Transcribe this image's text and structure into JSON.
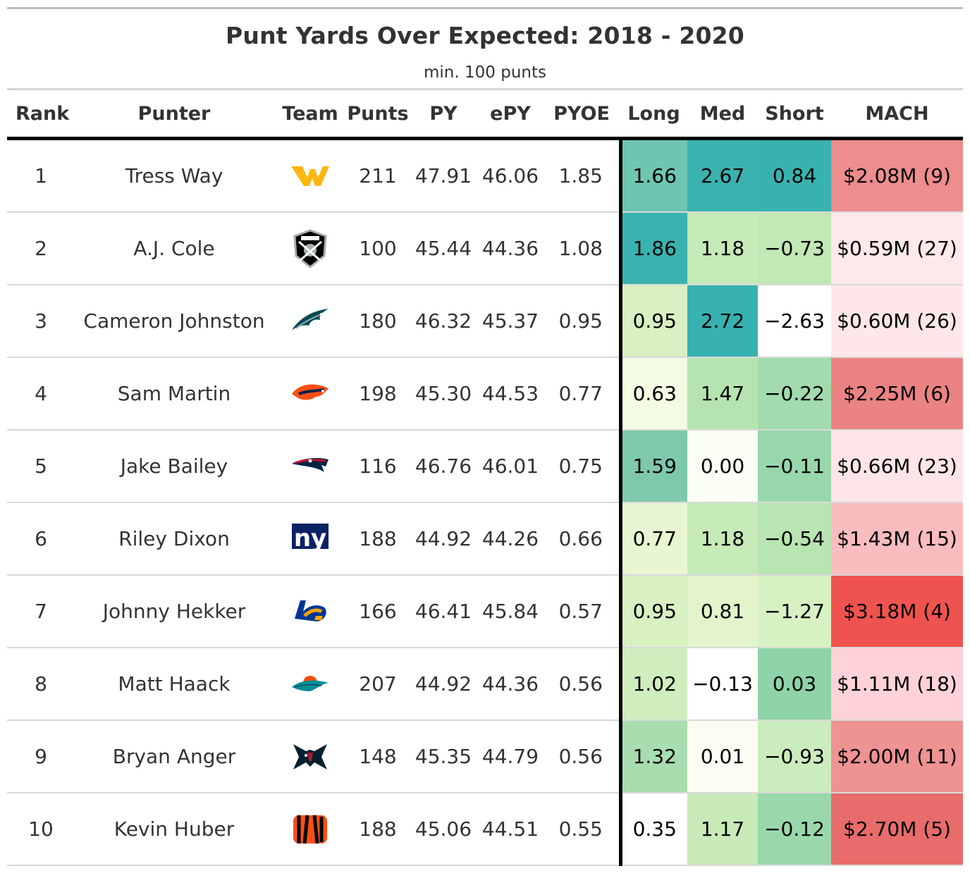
{
  "title": "Punt Yards Over Expected: 2018 - 2020",
  "subtitle": "min. 100 punts",
  "columns": [
    "Rank",
    "Punter",
    "Team",
    "Punts",
    "PY",
    "ePY",
    "PYOE",
    "Long",
    "Med",
    "Short",
    "MACH"
  ],
  "rows": [
    {
      "rank": "1",
      "punter": "Tress Way",
      "team": "washington-logo",
      "punts": "211",
      "py": "47.91",
      "epy": "46.06",
      "pyoe": "1.85",
      "long": "1.66",
      "med": "2.67",
      "short": "0.84",
      "mach": "$2.08M (9)"
    },
    {
      "rank": "2",
      "punter": "A.J. Cole",
      "team": "raiders-logo",
      "punts": "100",
      "py": "45.44",
      "epy": "44.36",
      "pyoe": "1.08",
      "long": "1.86",
      "med": "1.18",
      "short": "−0.73",
      "mach": "$0.59M (27)"
    },
    {
      "rank": "3",
      "punter": "Cameron Johnston",
      "team": "eagles-logo",
      "punts": "180",
      "py": "46.32",
      "epy": "45.37",
      "pyoe": "0.95",
      "long": "0.95",
      "med": "2.72",
      "short": "−2.63",
      "mach": "$0.60M (26)"
    },
    {
      "rank": "4",
      "punter": "Sam Martin",
      "team": "broncos-logo",
      "punts": "198",
      "py": "45.30",
      "epy": "44.53",
      "pyoe": "0.77",
      "long": "0.63",
      "med": "1.47",
      "short": "−0.22",
      "mach": "$2.25M (6)"
    },
    {
      "rank": "5",
      "punter": "Jake Bailey",
      "team": "patriots-logo",
      "punts": "116",
      "py": "46.76",
      "epy": "46.01",
      "pyoe": "0.75",
      "long": "1.59",
      "med": "0.00",
      "short": "−0.11",
      "mach": "$0.66M (23)"
    },
    {
      "rank": "6",
      "punter": "Riley Dixon",
      "team": "giants-logo",
      "punts": "188",
      "py": "44.92",
      "epy": "44.26",
      "pyoe": "0.66",
      "long": "0.77",
      "med": "1.18",
      "short": "−0.54",
      "mach": "$1.43M (15)"
    },
    {
      "rank": "7",
      "punter": "Johnny Hekker",
      "team": "rams-logo",
      "punts": "166",
      "py": "46.41",
      "epy": "45.84",
      "pyoe": "0.57",
      "long": "0.95",
      "med": "0.81",
      "short": "−1.27",
      "mach": "$3.18M (4)"
    },
    {
      "rank": "8",
      "punter": "Matt Haack",
      "team": "dolphins-logo",
      "punts": "207",
      "py": "44.92",
      "epy": "44.36",
      "pyoe": "0.56",
      "long": "1.02",
      "med": "−0.13",
      "short": "0.03",
      "mach": "$1.11M (18)"
    },
    {
      "rank": "9",
      "punter": "Bryan Anger",
      "team": "texans-logo",
      "punts": "148",
      "py": "45.35",
      "epy": "44.79",
      "pyoe": "0.56",
      "long": "1.32",
      "med": "0.01",
      "short": "−0.93",
      "mach": "$2.00M (11)"
    },
    {
      "rank": "10",
      "punter": "Kevin Huber",
      "team": "bengals-logo",
      "punts": "188",
      "py": "45.06",
      "epy": "44.51",
      "pyoe": "0.55",
      "long": "0.35",
      "med": "1.17",
      "short": "−0.12",
      "mach": "$2.70M (5)"
    }
  ],
  "cell_colors": {
    "long": [
      "#6ec5b0",
      "#3ab3b0",
      "#d8f0c2",
      "#f3fbe3",
      "#7ec9ac",
      "#e8f7d2",
      "#d8f0c2",
      "#d0edbe",
      "#a8ddb0",
      "#ffffff"
    ],
    "med": [
      "#3ab3b0",
      "#c6eab8",
      "#37b2b0",
      "#b6e4b0",
      "#fafdf3",
      "#c6eab8",
      "#e2f5ca",
      "#ffffff",
      "#fbfdf3",
      "#c8eab8"
    ],
    "short": [
      "#37b2b0",
      "#c2e8b5",
      "#ffffff",
      "#a2dbad",
      "#98d7ab",
      "#b8e5b2",
      "#d8f1c3",
      "#8ed4a8",
      "#cbecbc",
      "#9ad8ac"
    ],
    "mach": [
      "#ed8d8d",
      "#ffe8ea",
      "#ffe7e9",
      "#eb8383",
      "#ffe5e8",
      "#f9bcbf",
      "#ef5350",
      "#ffd2d7",
      "#ee9292",
      "#e86c6b"
    ]
  },
  "chart_data": {
    "type": "table",
    "title": "Punt Yards Over Expected: 2018 - 2020",
    "subtitle": "min. 100 punts",
    "columns": [
      "Rank",
      "Punter",
      "Team",
      "Punts",
      "PY",
      "ePY",
      "PYOE",
      "Long",
      "Med",
      "Short",
      "MACH"
    ],
    "heatmap_columns": [
      "Long",
      "Med",
      "Short",
      "MACH"
    ]
  }
}
